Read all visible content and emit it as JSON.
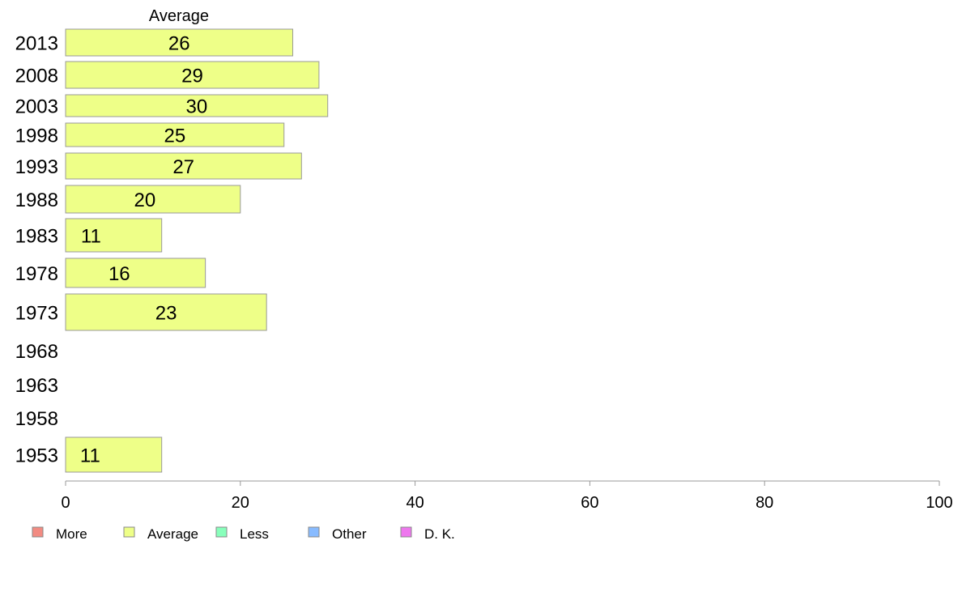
{
  "chart_data": {
    "type": "bar",
    "orientation": "horizontal",
    "series_header": "Average",
    "categories": [
      "2013",
      "2008",
      "2003",
      "1998",
      "1993",
      "1988",
      "1983",
      "1978",
      "1973",
      "1968",
      "1963",
      "1958",
      "1953"
    ],
    "series": [
      {
        "name": "Average",
        "color": "#eeff88",
        "values": [
          26,
          29,
          30,
          25,
          27,
          20,
          11,
          16,
          23,
          null,
          null,
          null,
          11
        ],
        "labels": [
          "26",
          "29",
          "30",
          "25",
          "27",
          "20",
          "11",
          "16",
          "23",
          "",
          "",
          "",
          "11"
        ]
      }
    ],
    "xlim": [
      0,
      100
    ],
    "x_ticks": [
      0,
      20,
      40,
      60,
      80,
      100
    ],
    "x_tick_labels": [
      "0",
      "20",
      "40",
      "60",
      "80",
      "100"
    ],
    "legend": {
      "position": "bottom",
      "items": [
        {
          "label": "More",
          "color": "#f28b82"
        },
        {
          "label": "Average",
          "color": "#eeff88"
        },
        {
          "label": "Less",
          "color": "#88ffbb"
        },
        {
          "label": "Other",
          "color": "#88bbff"
        },
        {
          "label": "D. K.",
          "color": "#ee77ee"
        }
      ]
    },
    "grid": false
  }
}
